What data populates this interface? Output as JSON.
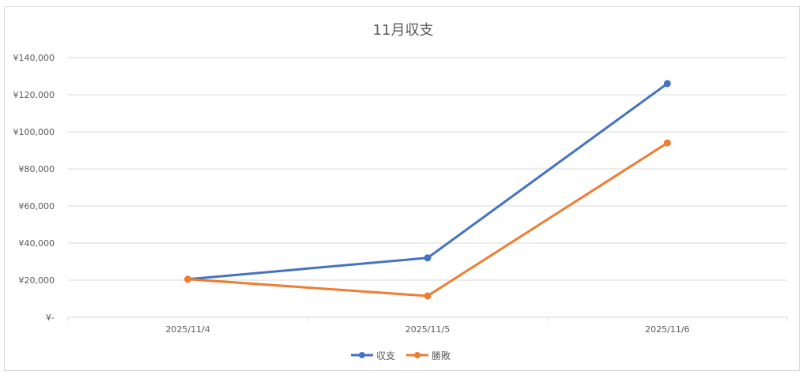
{
  "chart_data": {
    "type": "line",
    "title": "11月収支",
    "xlabel": "",
    "ylabel": "",
    "categories": [
      "2025/11/4",
      "2025/11/5",
      "2025/11/6"
    ],
    "series": [
      {
        "name": "収支",
        "color": "#4472c4",
        "values": [
          20500,
          32000,
          126000
        ]
      },
      {
        "name": "勝敗",
        "color": "#ed7d31",
        "values": [
          20500,
          11500,
          94000
        ]
      }
    ],
    "ylim": [
      0,
      140000
    ],
    "yticks": [
      0,
      20000,
      40000,
      60000,
      80000,
      100000,
      120000,
      140000
    ],
    "ytick_labels": [
      "¥-",
      "¥20,000",
      "¥40,000",
      "¥60,000",
      "¥80,000",
      "¥100,000",
      "¥120,000",
      "¥140,000"
    ],
    "grid": true,
    "legend_position": "bottom"
  }
}
